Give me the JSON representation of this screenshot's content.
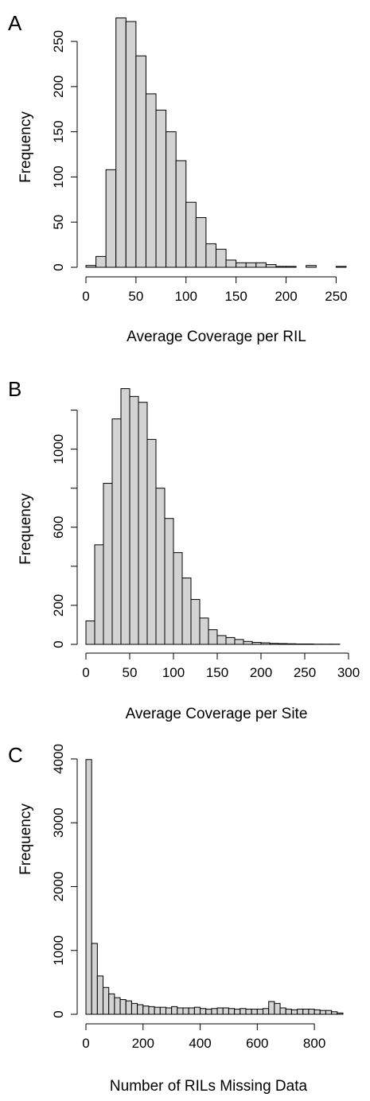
{
  "chart_data": [
    {
      "type": "bar",
      "panel_label": "A",
      "title": "",
      "xlabel": "Average Coverage per RIL",
      "ylabel": "Frequency",
      "bin_edges": [
        0,
        10,
        20,
        30,
        40,
        50,
        60,
        70,
        80,
        90,
        100,
        110,
        120,
        130,
        140,
        150,
        160,
        170,
        180,
        190,
        200,
        210,
        220,
        230,
        240,
        250,
        260
      ],
      "values": [
        2,
        12,
        108,
        276,
        272,
        234,
        192,
        174,
        150,
        118,
        72,
        55,
        26,
        20,
        8,
        5,
        5,
        5,
        3,
        1,
        1,
        0,
        2,
        0,
        0,
        1
      ],
      "xlim": [
        0,
        260
      ],
      "ylim": [
        0,
        280
      ],
      "xticks": [
        0,
        50,
        100,
        150,
        200,
        250
      ],
      "xtick_labels": [
        "0",
        "50",
        "100",
        "150",
        "200",
        "250"
      ],
      "yticks": [
        0,
        50,
        100,
        150,
        200,
        250
      ],
      "ytick_labels": [
        "0",
        "50",
        "100",
        "150",
        "200",
        "250"
      ],
      "bar_color": "#d3d3d3",
      "grid": false
    },
    {
      "type": "bar",
      "panel_label": "B",
      "title": "",
      "xlabel": "Average Coverage per Site",
      "ylabel": "Frequency",
      "bin_edges": [
        0,
        10,
        20,
        30,
        40,
        50,
        60,
        70,
        80,
        90,
        100,
        110,
        120,
        130,
        140,
        150,
        160,
        170,
        180,
        190,
        200,
        210,
        220,
        230,
        240,
        250,
        260,
        270,
        280,
        290
      ],
      "values": [
        120,
        510,
        825,
        1155,
        1310,
        1270,
        1240,
        1050,
        800,
        645,
        470,
        340,
        230,
        135,
        75,
        45,
        35,
        25,
        15,
        10,
        8,
        5,
        4,
        3,
        2,
        2,
        1,
        1,
        1
      ],
      "xlim": [
        0,
        300
      ],
      "ylim": [
        0,
        1300
      ],
      "xticks": [
        0,
        50,
        100,
        150,
        200,
        250,
        300
      ],
      "xtick_labels": [
        "0",
        "50",
        "100",
        "150",
        "200",
        "250",
        "300"
      ],
      "yticks": [
        0,
        200,
        400,
        600,
        800,
        1000,
        1200
      ],
      "ytick_labels": [
        "0",
        "200",
        "",
        "600",
        "",
        "1000",
        ""
      ],
      "bar_color": "#d3d3d3",
      "grid": false
    },
    {
      "type": "bar",
      "panel_label": "C",
      "title": "",
      "xlabel": "Number of RILs Missing Data",
      "ylabel": "Frequency",
      "bin_edges": [
        0,
        20,
        40,
        60,
        80,
        100,
        120,
        140,
        160,
        180,
        200,
        220,
        240,
        260,
        280,
        300,
        320,
        340,
        360,
        380,
        400,
        420,
        440,
        460,
        480,
        500,
        520,
        540,
        560,
        580,
        600,
        620,
        640,
        660,
        680,
        700,
        720,
        740,
        760,
        780,
        800,
        820,
        840,
        860,
        880,
        900
      ],
      "values": [
        3990,
        1110,
        600,
        420,
        320,
        260,
        230,
        210,
        170,
        150,
        130,
        120,
        110,
        110,
        100,
        120,
        100,
        100,
        100,
        110,
        90,
        80,
        90,
        100,
        100,
        90,
        80,
        90,
        80,
        80,
        80,
        90,
        200,
        170,
        100,
        80,
        70,
        80,
        80,
        80,
        70,
        60,
        60,
        40,
        20
      ],
      "xlim": [
        0,
        900
      ],
      "ylim": [
        0,
        4000
      ],
      "xticks": [
        0,
        200,
        400,
        600,
        800
      ],
      "xtick_labels": [
        "0",
        "200",
        "400",
        "600",
        "800"
      ],
      "yticks": [
        0,
        1000,
        2000,
        3000,
        4000
      ],
      "ytick_labels": [
        "0",
        "1000",
        "2000",
        "3000",
        "4000"
      ],
      "bar_color": "#d3d3d3",
      "grid": false
    }
  ]
}
